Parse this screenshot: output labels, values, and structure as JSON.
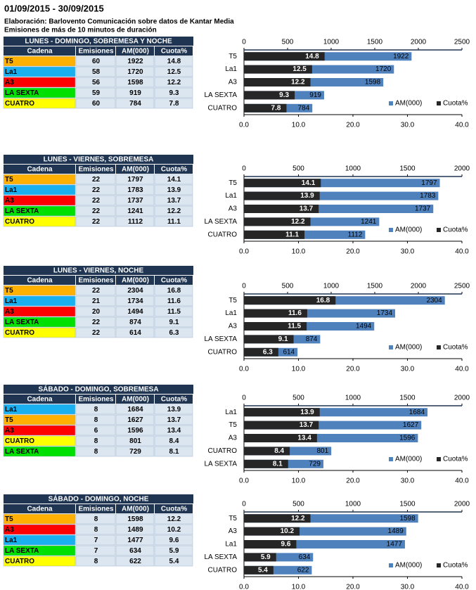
{
  "header": {
    "title": "01/09/2015 - 30/09/2015",
    "source": "Elaboración: Barlovento Comunicación sobre datos de Kantar Media",
    "note": "Emisiones de más de 10 minutos de duración"
  },
  "tables": [
    {
      "title": "LUNES - DOMINGO, SOBREMESA Y NOCHE",
      "columns": [
        "Cadena",
        "Emisiones",
        "AM(000)",
        "Cuota%"
      ],
      "rows": [
        [
          "T5",
          60,
          1922,
          14.8
        ],
        [
          "La1",
          58,
          1720,
          12.5
        ],
        [
          "A3",
          56,
          1598,
          12.2
        ],
        [
          "LA SEXTA",
          59,
          919,
          9.3
        ],
        [
          "CUATRO",
          60,
          784,
          7.8
        ]
      ],
      "row_colors": [
        "#ffb000",
        "#1ab0f0",
        "#ff0000",
        "#00e000",
        "#ffff00"
      ]
    },
    {
      "title": "LUNES - VIERNES, SOBREMESA",
      "columns": [
        "Cadena",
        "Emisiones",
        "AM(000)",
        "Cuota%"
      ],
      "rows": [
        [
          "T5",
          22,
          1797,
          14.1
        ],
        [
          "La1",
          22,
          1783,
          13.9
        ],
        [
          "A3",
          22,
          1737,
          13.7
        ],
        [
          "LA SEXTA",
          22,
          1241,
          12.2
        ],
        [
          "CUATRO",
          22,
          1112,
          11.1
        ]
      ],
      "row_colors": [
        "#ffb000",
        "#1ab0f0",
        "#ff0000",
        "#00e000",
        "#ffff00"
      ]
    },
    {
      "title": "LUNES - VIERNES, NOCHE",
      "columns": [
        "Cadena",
        "Emisiones",
        "AM(000)",
        "Cuota%"
      ],
      "rows": [
        [
          "T5",
          22,
          2304,
          16.8
        ],
        [
          "La1",
          21,
          1734,
          11.6
        ],
        [
          "A3",
          20,
          1494,
          11.5
        ],
        [
          "LA SEXTA",
          22,
          874,
          9.1
        ],
        [
          "CUATRO",
          22,
          614,
          6.3
        ]
      ],
      "row_colors": [
        "#ffb000",
        "#1ab0f0",
        "#ff0000",
        "#00e000",
        "#ffff00"
      ]
    },
    {
      "title": "SÁBADO - DOMINGO, SOBREMESA",
      "columns": [
        "Cadena",
        "Emisiones",
        "AM(000)",
        "Cuota%"
      ],
      "rows": [
        [
          "La1",
          8,
          1684,
          13.9
        ],
        [
          "T5",
          8,
          1627,
          13.7
        ],
        [
          "A3",
          6,
          1596,
          13.4
        ],
        [
          "CUATRO",
          8,
          801,
          8.4
        ],
        [
          "LA SEXTA",
          8,
          729,
          8.1
        ]
      ],
      "row_colors": [
        "#1ab0f0",
        "#ffb000",
        "#ff0000",
        "#ffff00",
        "#00e000"
      ]
    },
    {
      "title": "SÁBADO - DOMINGO, NOCHE",
      "columns": [
        "Cadena",
        "Emisiones",
        "AM(000)",
        "Cuota%"
      ],
      "rows": [
        [
          "T5",
          8,
          1598,
          12.2
        ],
        [
          "A3",
          8,
          1489,
          10.2
        ],
        [
          "La1",
          7,
          1477,
          9.6
        ],
        [
          "LA SEXTA",
          7,
          634,
          5.9
        ],
        [
          "CUATRO",
          8,
          622,
          5.4
        ]
      ],
      "row_colors": [
        "#ffb000",
        "#ff0000",
        "#1ab0f0",
        "#00e000",
        "#ffff00"
      ]
    }
  ],
  "chart_data": [
    {
      "type": "bar",
      "orientation": "horizontal",
      "categories": [
        "T5",
        "La1",
        "A3",
        "LA SEXTA",
        "CUATRO"
      ],
      "series": [
        {
          "name": "AM(000)",
          "color": "#4f81bd",
          "axis": "x2",
          "values": [
            1922,
            1720,
            1598,
            919,
            784
          ]
        },
        {
          "name": "Cuota%",
          "color": "#262626",
          "values": [
            14.8,
            12.5,
            12.2,
            9.3,
            7.8
          ]
        }
      ],
      "x2lim": [
        0,
        2500
      ],
      "x2ticks": [
        0,
        500,
        1000,
        1500,
        2000,
        2500
      ],
      "xlim": [
        0,
        40
      ],
      "xticks": [
        {
          "value": 0,
          "label": "0.0"
        },
        {
          "value": 10,
          "label": "10.0"
        },
        {
          "value": 20,
          "label": "20.0"
        },
        {
          "value": 30,
          "label": "30.0"
        },
        {
          "value": 40,
          "label": "40.0"
        }
      ],
      "legend": "lower right"
    },
    {
      "type": "bar",
      "orientation": "horizontal",
      "categories": [
        "T5",
        "La1",
        "A3",
        "LA SEXTA",
        "CUATRO"
      ],
      "series": [
        {
          "name": "AM(000)",
          "color": "#4f81bd",
          "axis": "x2",
          "values": [
            1797,
            1783,
            1737,
            1241,
            1112
          ]
        },
        {
          "name": "Cuota%",
          "color": "#262626",
          "values": [
            14.1,
            13.9,
            13.7,
            12.2,
            11.1
          ]
        }
      ],
      "x2lim": [
        0,
        2000
      ],
      "x2ticks": [
        0,
        500,
        1000,
        1500,
        2000
      ],
      "xlim": [
        0,
        40
      ],
      "xticks": [
        {
          "value": 0,
          "label": "0.0"
        },
        {
          "value": 10,
          "label": "10.0"
        },
        {
          "value": 20,
          "label": "20.0"
        },
        {
          "value": 30,
          "label": "30.0"
        },
        {
          "value": 40,
          "label": "40.0"
        }
      ],
      "legend": "lower right"
    },
    {
      "type": "bar",
      "orientation": "horizontal",
      "categories": [
        "T5",
        "La1",
        "A3",
        "LA SEXTA",
        "CUATRO"
      ],
      "series": [
        {
          "name": "AM(000)",
          "color": "#4f81bd",
          "axis": "x2",
          "values": [
            2304,
            1734,
            1494,
            874,
            614
          ]
        },
        {
          "name": "Cuota%",
          "color": "#262626",
          "values": [
            16.8,
            11.6,
            11.5,
            9.1,
            6.3
          ]
        }
      ],
      "x2lim": [
        0,
        2500
      ],
      "x2ticks": [
        0,
        500,
        1000,
        1500,
        2000,
        2500
      ],
      "xlim": [
        0,
        40
      ],
      "xticks": [
        {
          "value": 0,
          "label": "0.0"
        },
        {
          "value": 10,
          "label": "10.0"
        },
        {
          "value": 20,
          "label": "20.0"
        },
        {
          "value": 30,
          "label": "30.0"
        },
        {
          "value": 40,
          "label": "40.0"
        }
      ],
      "legend": "lower right"
    },
    {
      "type": "bar",
      "orientation": "horizontal",
      "categories": [
        "La1",
        "T5",
        "A3",
        "CUATRO",
        "LA SEXTA"
      ],
      "series": [
        {
          "name": "AM(000)",
          "color": "#4f81bd",
          "axis": "x2",
          "values": [
            1684,
            1627,
            1596,
            801,
            729
          ]
        },
        {
          "name": "Cuota%",
          "color": "#262626",
          "values": [
            13.9,
            13.7,
            13.4,
            8.4,
            8.1
          ]
        }
      ],
      "x2lim": [
        0,
        2000
      ],
      "x2ticks": [
        0,
        500,
        1000,
        1500,
        2000
      ],
      "xlim": [
        0,
        40
      ],
      "xticks": [
        {
          "value": 0,
          "label": "0.0"
        },
        {
          "value": 10,
          "label": "10.0"
        },
        {
          "value": 20,
          "label": "20.0"
        },
        {
          "value": 30,
          "label": "30.0"
        },
        {
          "value": 40,
          "label": "40.0"
        }
      ],
      "legend": "lower right"
    },
    {
      "type": "bar",
      "orientation": "horizontal",
      "categories": [
        "T5",
        "A3",
        "La1",
        "LA SEXTA",
        "CUATRO"
      ],
      "series": [
        {
          "name": "AM(000)",
          "color": "#4f81bd",
          "axis": "x2",
          "values": [
            1598,
            1489,
            1477,
            634,
            622
          ]
        },
        {
          "name": "Cuota%",
          "color": "#262626",
          "values": [
            12.2,
            10.2,
            9.6,
            5.9,
            5.4
          ]
        }
      ],
      "x2lim": [
        0,
        2000
      ],
      "x2ticks": [
        0,
        500,
        1000,
        1500,
        2000
      ],
      "xlim": [
        0,
        40
      ],
      "xticks": [
        {
          "value": 0,
          "label": "0.0"
        },
        {
          "value": 10,
          "label": "10.0"
        },
        {
          "value": 20,
          "label": "20.0"
        },
        {
          "value": 30,
          "label": "30.0"
        },
        {
          "value": 40,
          "label": "40.0"
        }
      ],
      "legend": "lower right"
    }
  ]
}
